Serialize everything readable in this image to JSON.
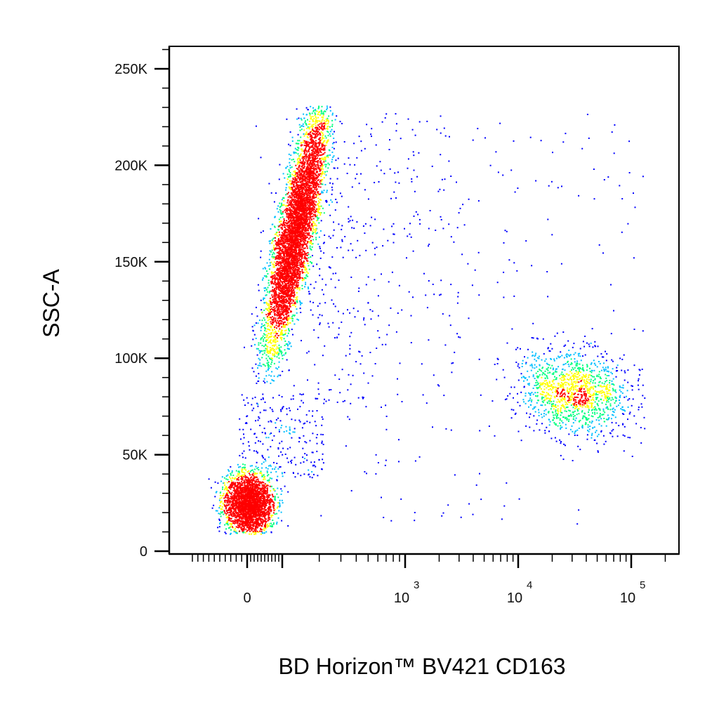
{
  "chart_data": {
    "type": "scatter",
    "title": "",
    "xlabel": "BD Horizon™ BV421 CD163",
    "ylabel": "SSC-A",
    "x_scale": "biexponential",
    "y_scale": "linear",
    "ylim": [
      0,
      262144
    ],
    "xlim": [
      -100,
      262144
    ],
    "y_ticks": [
      {
        "value": 0,
        "label": "0"
      },
      {
        "value": 50000,
        "label": "50K"
      },
      {
        "value": 100000,
        "label": "100K"
      },
      {
        "value": 150000,
        "label": "150K"
      },
      {
        "value": 200000,
        "label": "200K"
      },
      {
        "value": 250000,
        "label": "250K"
      }
    ],
    "x_ticks": [
      {
        "value": 0,
        "base": "0",
        "exp": ""
      },
      {
        "value": 1000,
        "base": "10",
        "exp": "3"
      },
      {
        "value": 10000,
        "base": "10",
        "exp": "4"
      },
      {
        "value": 100000,
        "base": "10",
        "exp": "5"
      }
    ],
    "color_scale": [
      "#0000ff",
      "#00bfff",
      "#00ff80",
      "#ffff00",
      "#ff0000"
    ],
    "grid": false,
    "populations": [
      {
        "description": "SSC-high CD163-negative (granulocytes)",
        "center": {
          "x": 150,
          "y": 160000
        },
        "density": "high"
      },
      {
        "description": "SSC-low CD163-negative (lymphocytes)",
        "center": {
          "x": 0,
          "y": 25000
        },
        "density": "high"
      },
      {
        "description": "SSC-intermediate CD163-positive (monocytes)",
        "center": {
          "x": 30000,
          "y": 85000
        },
        "density": "medium"
      }
    ]
  }
}
